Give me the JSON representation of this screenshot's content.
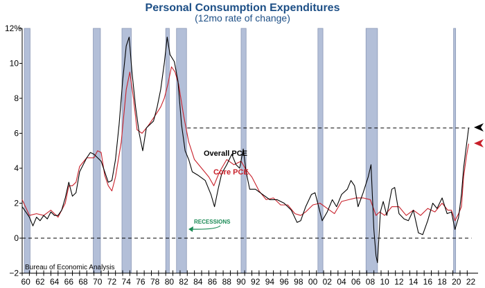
{
  "chart_data": {
    "type": "line",
    "title": "Personal Consumption Expenditures",
    "subtitle": "(12mo rate of change)",
    "source": "Bureau of Economic Analysis",
    "xlim": [
      1960,
      2022.6
    ],
    "ylim": [
      -2,
      12
    ],
    "y_ticks": [
      -2,
      0,
      2,
      4,
      6,
      8,
      10,
      12
    ],
    "y_tick_labels": [
      "−2",
      "0",
      "2",
      "4",
      "6",
      "8",
      "10",
      "12%"
    ],
    "x_tick_labels": [
      "60",
      "62",
      "64",
      "66",
      "68",
      "70",
      "72",
      "74",
      "76",
      "78",
      "80",
      "82",
      "84",
      "86",
      "88",
      "90",
      "92",
      "94",
      "96",
      "98",
      "00",
      "02",
      "04",
      "06",
      "08",
      "10",
      "12",
      "14",
      "16",
      "18",
      "20",
      "22"
    ],
    "recession_label": "RECESSIONS",
    "recessions": [
      [
        1960.3,
        1961.1
      ],
      [
        1969.9,
        1970.9
      ],
      [
        1973.9,
        1975.2
      ],
      [
        1980.0,
        1980.5
      ],
      [
        1981.5,
        1982.9
      ],
      [
        1990.5,
        1991.2
      ],
      [
        2001.2,
        2001.9
      ],
      [
        2007.9,
        2009.5
      ],
      [
        2020.1,
        2020.3
      ]
    ],
    "reference_lines": [
      {
        "y": 0,
        "from": 1960,
        "to": 2022.6
      },
      {
        "y": 6.3,
        "from": 1983.0,
        "to": 2022.3
      }
    ],
    "colors": {
      "overall": "#000000",
      "core": "#c8202a",
      "recession": "#b3bfd8",
      "title": "#1d4f86",
      "recession_label": "#1a8a55"
    },
    "series": [
      {
        "name": "Overall PCE",
        "color": "#000000",
        "points": [
          [
            1960,
            1.8
          ],
          [
            1960.5,
            1.5
          ],
          [
            1961,
            1.2
          ],
          [
            1961.5,
            0.7
          ],
          [
            1962,
            1.2
          ],
          [
            1962.5,
            1.0
          ],
          [
            1963,
            1.3
          ],
          [
            1963.5,
            1.1
          ],
          [
            1964,
            1.5
          ],
          [
            1964.5,
            1.3
          ],
          [
            1965,
            1.3
          ],
          [
            1965.5,
            1.6
          ],
          [
            1966,
            2.3
          ],
          [
            1966.5,
            3.2
          ],
          [
            1967,
            2.4
          ],
          [
            1967.5,
            2.6
          ],
          [
            1968,
            3.8
          ],
          [
            1968.5,
            4.2
          ],
          [
            1969,
            4.6
          ],
          [
            1969.5,
            4.9
          ],
          [
            1970,
            4.8
          ],
          [
            1970.5,
            4.6
          ],
          [
            1971,
            4.4
          ],
          [
            1971.5,
            3.8
          ],
          [
            1972,
            3.2
          ],
          [
            1972.5,
            3.3
          ],
          [
            1973,
            4.5
          ],
          [
            1973.5,
            6.5
          ],
          [
            1974,
            9.0
          ],
          [
            1974.5,
            11.0
          ],
          [
            1974.9,
            11.5
          ],
          [
            1975.3,
            9.5
          ],
          [
            1975.8,
            7.5
          ],
          [
            1976.3,
            6.0
          ],
          [
            1976.8,
            5.0
          ],
          [
            1977.3,
            6.3
          ],
          [
            1977.8,
            6.5
          ],
          [
            1978.3,
            6.7
          ],
          [
            1978.8,
            7.5
          ],
          [
            1979.3,
            8.5
          ],
          [
            1979.8,
            10.0
          ],
          [
            1980.2,
            11.5
          ],
          [
            1980.6,
            10.5
          ],
          [
            1981.2,
            10.1
          ],
          [
            1981.7,
            9.0
          ],
          [
            1982.2,
            6.5
          ],
          [
            1982.7,
            5.0
          ],
          [
            1983.2,
            4.5
          ],
          [
            1983.7,
            3.8
          ],
          [
            1984.5,
            3.6
          ],
          [
            1985.5,
            3.3
          ],
          [
            1986.3,
            2.5
          ],
          [
            1986.8,
            1.8
          ],
          [
            1987.3,
            2.8
          ],
          [
            1987.8,
            3.7
          ],
          [
            1988.5,
            4.2
          ],
          [
            1989.2,
            4.8
          ],
          [
            1989.8,
            4.2
          ],
          [
            1990.3,
            4.0
          ],
          [
            1990.8,
            5.1
          ],
          [
            1991.2,
            3.8
          ],
          [
            1991.7,
            2.8
          ],
          [
            1992.5,
            2.8
          ],
          [
            1993.5,
            2.5
          ],
          [
            1994.5,
            2.2
          ],
          [
            1995.5,
            2.2
          ],
          [
            1996.5,
            2.0
          ],
          [
            1997.5,
            1.6
          ],
          [
            1998.3,
            0.9
          ],
          [
            1998.8,
            1.0
          ],
          [
            1999.5,
            1.8
          ],
          [
            2000.3,
            2.5
          ],
          [
            2000.8,
            2.6
          ],
          [
            2001.3,
            1.8
          ],
          [
            2001.8,
            1.0
          ],
          [
            2002.5,
            1.5
          ],
          [
            2003.2,
            2.2
          ],
          [
            2003.8,
            1.8
          ],
          [
            2004.5,
            2.5
          ],
          [
            2005.3,
            2.8
          ],
          [
            2005.8,
            3.3
          ],
          [
            2006.3,
            3.0
          ],
          [
            2006.8,
            1.8
          ],
          [
            2007.5,
            2.6
          ],
          [
            2008.2,
            3.5
          ],
          [
            2008.6,
            4.2
          ],
          [
            2009.0,
            0.5
          ],
          [
            2009.3,
            -1.0
          ],
          [
            2009.5,
            -1.4
          ],
          [
            2009.9,
            1.5
          ],
          [
            2010.3,
            2.1
          ],
          [
            2010.8,
            1.3
          ],
          [
            2011.5,
            2.8
          ],
          [
            2011.9,
            2.9
          ],
          [
            2012.5,
            1.4
          ],
          [
            2013.2,
            1.1
          ],
          [
            2013.8,
            1.0
          ],
          [
            2014.5,
            1.6
          ],
          [
            2015.2,
            0.3
          ],
          [
            2015.8,
            0.2
          ],
          [
            2016.5,
            1.0
          ],
          [
            2017.2,
            2.0
          ],
          [
            2017.8,
            1.7
          ],
          [
            2018.5,
            2.3
          ],
          [
            2019.2,
            1.4
          ],
          [
            2019.8,
            1.5
          ],
          [
            2020.3,
            0.5
          ],
          [
            2020.8,
            1.2
          ],
          [
            2021.2,
            2.5
          ],
          [
            2021.5,
            4.0
          ],
          [
            2021.8,
            5.0
          ],
          [
            2022.2,
            6.3
          ]
        ]
      },
      {
        "name": "Core PCE",
        "color": "#c8202a",
        "points": [
          [
            1960,
            2.2
          ],
          [
            1961,
            1.3
          ],
          [
            1962,
            1.4
          ],
          [
            1963,
            1.3
          ],
          [
            1964,
            1.6
          ],
          [
            1965,
            1.2
          ],
          [
            1966,
            2.0
          ],
          [
            1966.5,
            3.0
          ],
          [
            1967,
            3.0
          ],
          [
            1967.5,
            3.2
          ],
          [
            1968,
            4.1
          ],
          [
            1969,
            4.6
          ],
          [
            1970,
            4.6
          ],
          [
            1970.5,
            5.0
          ],
          [
            1971,
            4.9
          ],
          [
            1971.5,
            3.6
          ],
          [
            1972,
            3.0
          ],
          [
            1972.5,
            2.7
          ],
          [
            1973,
            3.5
          ],
          [
            1973.8,
            5.5
          ],
          [
            1974.5,
            8.5
          ],
          [
            1975,
            9.5
          ],
          [
            1975.5,
            8.0
          ],
          [
            1976,
            6.2
          ],
          [
            1976.7,
            6.0
          ],
          [
            1977.5,
            6.4
          ],
          [
            1978.5,
            7.0
          ],
          [
            1979.3,
            7.5
          ],
          [
            1979.8,
            8.0
          ],
          [
            1980.3,
            8.8
          ],
          [
            1980.8,
            9.8
          ],
          [
            1981.3,
            9.5
          ],
          [
            1981.8,
            8.8
          ],
          [
            1982.5,
            7.0
          ],
          [
            1983.2,
            5.5
          ],
          [
            1984,
            4.5
          ],
          [
            1985,
            4.0
          ],
          [
            1986,
            3.5
          ],
          [
            1986.7,
            3.0
          ],
          [
            1987.5,
            3.8
          ],
          [
            1988.5,
            4.5
          ],
          [
            1989.5,
            4.2
          ],
          [
            1990.5,
            4.4
          ],
          [
            1991.2,
            3.9
          ],
          [
            1992,
            3.5
          ],
          [
            1993,
            2.7
          ],
          [
            1994,
            2.2
          ],
          [
            1995,
            2.3
          ],
          [
            1996,
            1.9
          ],
          [
            1997,
            1.9
          ],
          [
            1998,
            1.4
          ],
          [
            1998.8,
            1.3
          ],
          [
            1999.5,
            1.5
          ],
          [
            2000.5,
            1.9
          ],
          [
            2001.5,
            2.0
          ],
          [
            2002.5,
            1.7
          ],
          [
            2003.5,
            1.4
          ],
          [
            2004.5,
            2.1
          ],
          [
            2005.5,
            2.2
          ],
          [
            2006.5,
            2.3
          ],
          [
            2007.5,
            2.3
          ],
          [
            2008.5,
            2.2
          ],
          [
            2009.3,
            1.3
          ],
          [
            2009.8,
            1.5
          ],
          [
            2010.5,
            1.3
          ],
          [
            2011.5,
            1.8
          ],
          [
            2012.5,
            1.8
          ],
          [
            2013.5,
            1.3
          ],
          [
            2014.5,
            1.6
          ],
          [
            2015.5,
            1.3
          ],
          [
            2016.5,
            1.7
          ],
          [
            2017.5,
            1.5
          ],
          [
            2018.5,
            2.0
          ],
          [
            2019.3,
            1.6
          ],
          [
            2019.8,
            1.6
          ],
          [
            2020.3,
            1.0
          ],
          [
            2020.8,
            1.4
          ],
          [
            2021.2,
            1.8
          ],
          [
            2021.5,
            3.5
          ],
          [
            2021.9,
            4.7
          ],
          [
            2022.2,
            5.4
          ]
        ]
      }
    ]
  }
}
